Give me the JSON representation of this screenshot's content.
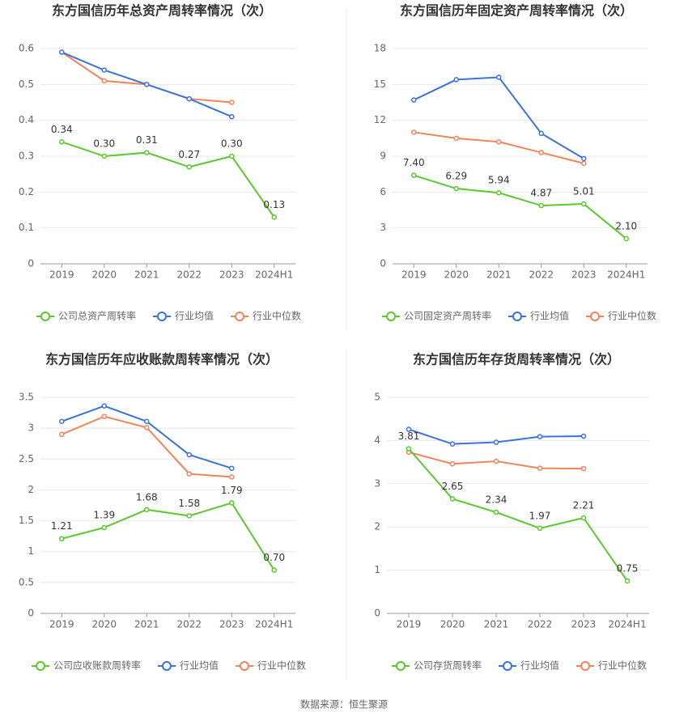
{
  "chart_data": [
    {
      "type": "line",
      "title": "东方国信历年总资产周转率情况（次）",
      "categories": [
        "2019",
        "2020",
        "2021",
        "2022",
        "2023",
        "2024H1"
      ],
      "ylim": [
        0,
        0.6
      ],
      "yticks": [
        0,
        0.1,
        0.2,
        0.3,
        0.4,
        0.5,
        0.6
      ],
      "grid": true,
      "series": [
        {
          "name": "公司总资产周转率",
          "color": "#5cc72f",
          "values": [
            0.34,
            0.3,
            0.31,
            0.27,
            0.3,
            0.13
          ],
          "value_labels": [
            "0.34",
            "0.30",
            "0.31",
            "0.27",
            "0.30",
            "0.13"
          ]
        },
        {
          "name": "行业均值",
          "color": "#3b73d9",
          "values": [
            0.59,
            0.54,
            0.5,
            0.46,
            0.41,
            null
          ]
        },
        {
          "name": "行业中位数",
          "color": "#f0845c",
          "values": [
            0.59,
            0.51,
            0.5,
            0.46,
            0.45,
            null
          ]
        }
      ]
    },
    {
      "type": "line",
      "title": "东方国信历年固定资产周转率情况（次）",
      "categories": [
        "2019",
        "2020",
        "2021",
        "2022",
        "2023",
        "2024H1"
      ],
      "ylim": [
        0,
        18
      ],
      "yticks": [
        0,
        3,
        6,
        9,
        12,
        15,
        18
      ],
      "grid": true,
      "series": [
        {
          "name": "公司固定资产周转率",
          "color": "#5cc72f",
          "values": [
            7.4,
            6.29,
            5.94,
            4.87,
            5.01,
            2.1
          ],
          "value_labels": [
            "7.40",
            "6.29",
            "5.94",
            "4.87",
            "5.01",
            "2.10"
          ]
        },
        {
          "name": "行业均值",
          "color": "#3b73d9",
          "values": [
            13.7,
            15.4,
            15.6,
            10.9,
            8.8,
            null
          ]
        },
        {
          "name": "行业中位数",
          "color": "#f0845c",
          "values": [
            11.0,
            10.5,
            10.2,
            9.3,
            8.4,
            null
          ]
        }
      ]
    },
    {
      "type": "line",
      "title": "东方国信历年应收账款周转率情况（次）",
      "categories": [
        "2019",
        "2020",
        "2021",
        "2022",
        "2023",
        "2024H1"
      ],
      "ylim": [
        0,
        3.5
      ],
      "yticks": [
        0,
        0.5,
        1,
        1.5,
        2,
        2.5,
        3,
        3.5
      ],
      "grid": true,
      "series": [
        {
          "name": "公司应收账款周转率",
          "color": "#5cc72f",
          "values": [
            1.21,
            1.39,
            1.68,
            1.58,
            1.79,
            0.7
          ],
          "value_labels": [
            "1.21",
            "1.39",
            "1.68",
            "1.58",
            "1.79",
            "0.70"
          ]
        },
        {
          "name": "行业均值",
          "color": "#3b73d9",
          "values": [
            3.11,
            3.36,
            3.11,
            2.57,
            2.35,
            null
          ]
        },
        {
          "name": "行业中位数",
          "color": "#f0845c",
          "values": [
            2.9,
            3.19,
            3.01,
            2.26,
            2.21,
            null
          ]
        }
      ]
    },
    {
      "type": "line",
      "title": "东方国信历年存货周转率情况（次）",
      "categories": [
        "2019",
        "2020",
        "2021",
        "2022",
        "2023",
        "2024H1"
      ],
      "ylim": [
        0,
        5
      ],
      "yticks": [
        0,
        1,
        2,
        3,
        4,
        5
      ],
      "grid": true,
      "series": [
        {
          "name": "公司存货周转率",
          "color": "#5cc72f",
          "values": [
            3.81,
            2.65,
            2.34,
            1.97,
            2.21,
            0.75
          ],
          "value_labels": [
            "3.81",
            "2.65",
            "2.34",
            "1.97",
            "2.21",
            "0.75"
          ]
        },
        {
          "name": "行业均值",
          "color": "#3b73d9",
          "values": [
            4.26,
            3.92,
            3.96,
            4.09,
            4.1,
            null
          ]
        },
        {
          "name": "行业中位数",
          "color": "#f0845c",
          "values": [
            3.73,
            3.46,
            3.52,
            3.36,
            3.35,
            null
          ]
        }
      ]
    }
  ],
  "source": "数据来源：恒生聚源"
}
